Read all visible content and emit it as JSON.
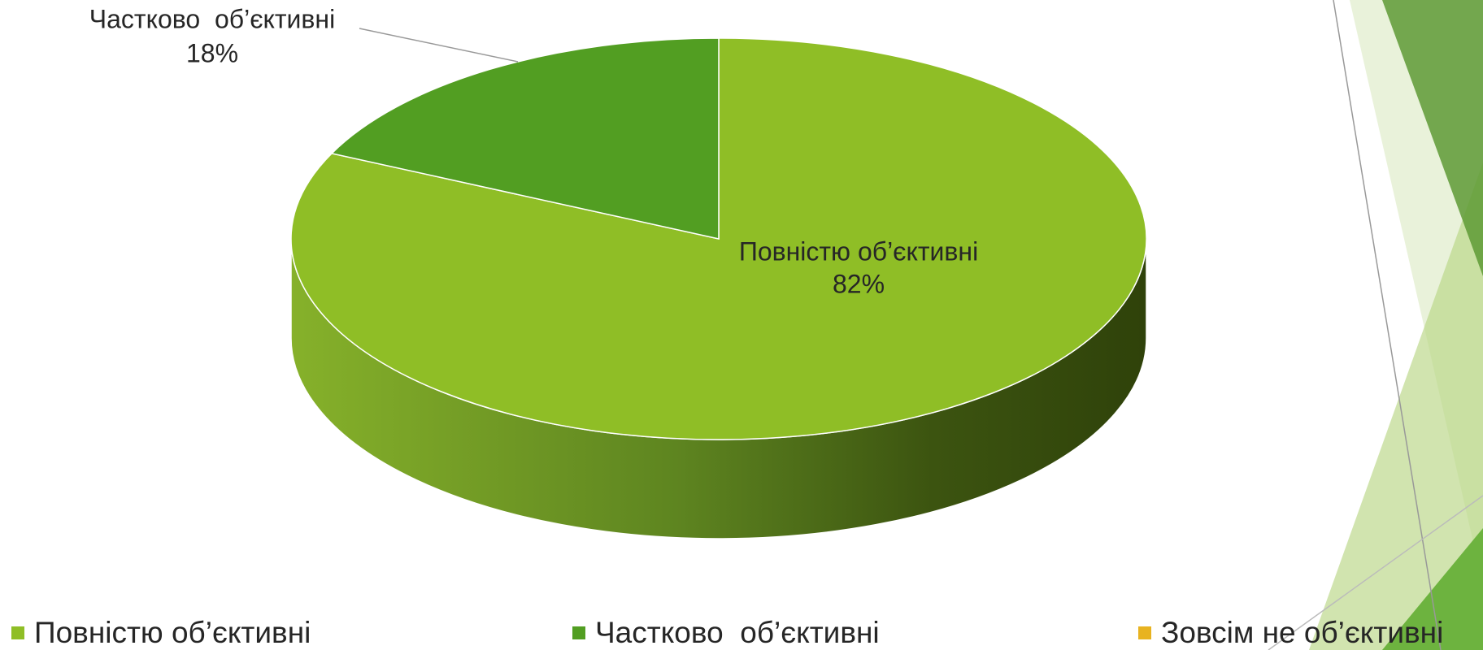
{
  "chart_data": {
    "type": "pie3d",
    "categories": [
      "Повністю об’єктивні",
      "Частково  об’єктивні",
      "Зовсім не об’єктивні"
    ],
    "values": [
      82,
      18,
      0
    ],
    "value_labels": [
      "82%",
      "18%",
      null
    ],
    "colors": [
      "#8fbe26",
      "#529e22",
      "#e8b320"
    ],
    "legend": "bottom"
  }
}
